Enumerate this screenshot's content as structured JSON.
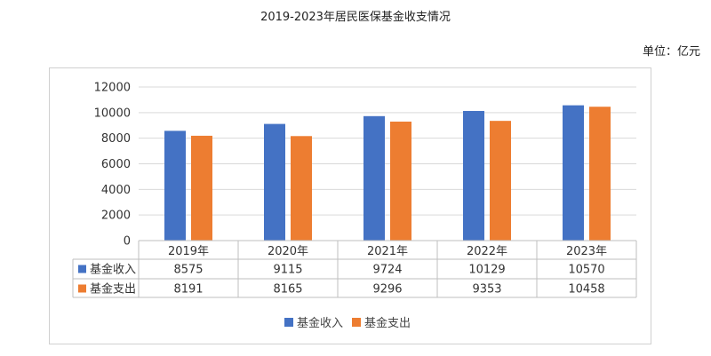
{
  "page_title": "2019-2023年居民医保基金收支情况",
  "unit_label": "单位：亿元",
  "chart_data": {
    "type": "bar",
    "title": "2019-2023年居民医保基金收支情况",
    "categories": [
      "2019年",
      "2020年",
      "2021年",
      "2022年",
      "2023年"
    ],
    "series": [
      {
        "name": "基金收入",
        "color": "#4472c4",
        "values": [
          8575,
          9115,
          9724,
          10129,
          10570
        ]
      },
      {
        "name": "基金支出",
        "color": "#ed7d31",
        "values": [
          8191,
          8165,
          9296,
          9353,
          10458
        ]
      }
    ],
    "ylim": [
      0,
      12000
    ],
    "yticks": [
      0,
      2000,
      4000,
      6000,
      8000,
      10000,
      12000
    ],
    "grid": true,
    "data_table": true,
    "legend_position": "bottom"
  }
}
